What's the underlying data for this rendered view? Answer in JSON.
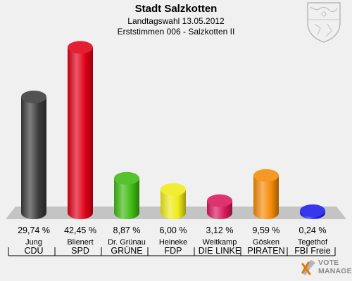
{
  "header": {
    "title": "Stadt Salzkotten",
    "subtitle1": "Landtagswahl 13.05.2012",
    "subtitle2": "Erststimmen 006 - Salzkotten II"
  },
  "watermark": {
    "line1": "VOTE",
    "line2": "MANAGER"
  },
  "chart_data": {
    "type": "bar",
    "title": "Stadt Salzkotten",
    "subtitle": "Landtagswahl 13.05.2012 / Erststimmen 006 - Salzkotten II",
    "categories": [
      "Jung",
      "Blienert",
      "Dr. Grünau",
      "Heineke",
      "Weitkamp",
      "Gösken",
      "Tegethof"
    ],
    "parties": [
      "CDU",
      "SPD",
      "GRÜNE",
      "FDP",
      "DIE LINKE",
      "PIRATEN",
      "FBI Freie"
    ],
    "values": [
      29.74,
      42.45,
      8.87,
      6.0,
      3.12,
      9.59,
      0.24
    ],
    "value_labels": [
      "29,74 %",
      "42,45 %",
      "8,87 %",
      "6,00 %",
      "3,12 %",
      "9,59 %",
      "0,24 %"
    ],
    "colors": [
      "#3a3a3a",
      "#e00018",
      "#3fba10",
      "#eeea18",
      "#d8185c",
      "#f58a08",
      "#1c1ce8"
    ],
    "ylim": [
      0,
      45
    ],
    "grid": false,
    "legend": "none"
  }
}
